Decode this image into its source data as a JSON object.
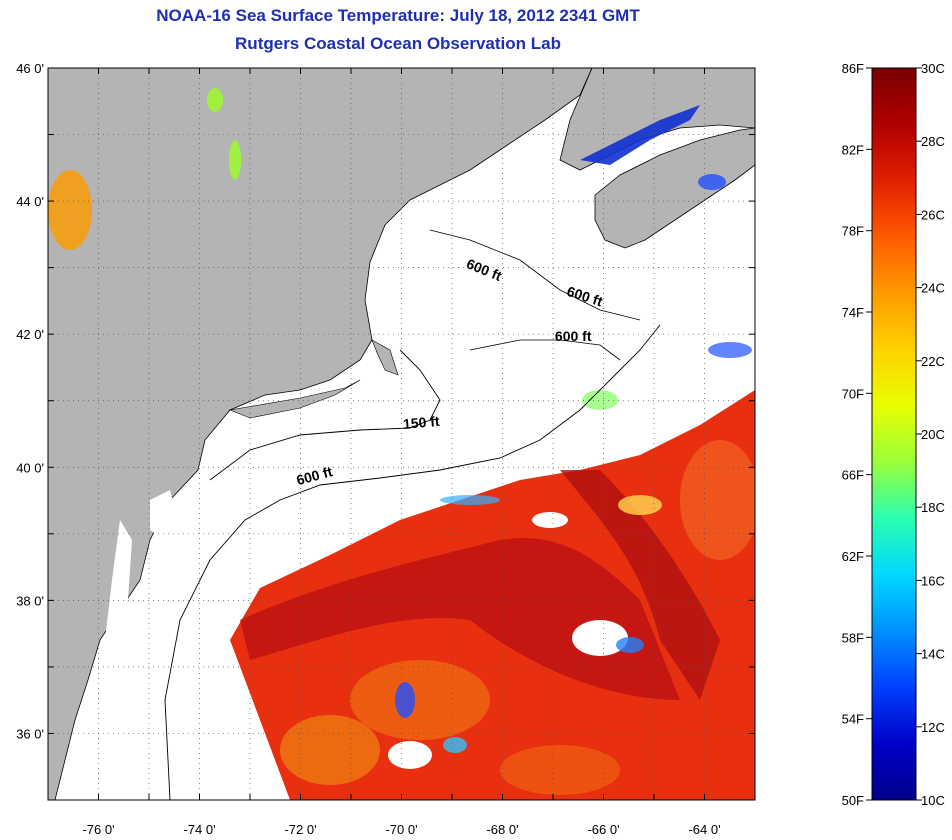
{
  "title": {
    "line1": "NOAA-16 Sea Surface Temperature:  July 18, 2012 2341 GMT",
    "line2": "Rutgers Coastal Ocean Observation Lab"
  },
  "axes": {
    "lon_range": [
      -77,
      -63
    ],
    "lat_range": [
      35,
      46
    ],
    "lon_ticks": [
      {
        "value": -76,
        "label": "-76 0'"
      },
      {
        "value": -74,
        "label": "-74 0'"
      },
      {
        "value": -72,
        "label": "-72 0'"
      },
      {
        "value": -70,
        "label": "-70 0'"
      },
      {
        "value": -68,
        "label": "-68 0'"
      },
      {
        "value": -66,
        "label": "-66 0'"
      },
      {
        "value": -64,
        "label": "-64 0'"
      }
    ],
    "lat_ticks": [
      {
        "value": 46,
        "label": "46 0'"
      },
      {
        "value": 44,
        "label": "44 0'"
      },
      {
        "value": 42,
        "label": "42 0'"
      },
      {
        "value": 40,
        "label": "40 0'"
      },
      {
        "value": 38,
        "label": "38 0'"
      },
      {
        "value": 36,
        "label": "36 0'"
      }
    ],
    "grid": "dotted"
  },
  "contour_labels": [
    {
      "text": "600 ft",
      "lon": -68.4,
      "lat": 42.9,
      "rotate": 22
    },
    {
      "text": "600 ft",
      "lon": -66.4,
      "lat": 42.5,
      "rotate": 18
    },
    {
      "text": "600 ft",
      "lon": -66.6,
      "lat": 41.9,
      "rotate": 0
    },
    {
      "text": "150 ft",
      "lon": -69.6,
      "lat": 40.6,
      "rotate": -5
    },
    {
      "text": "600 ft",
      "lon": -71.7,
      "lat": 39.8,
      "rotate": -15
    }
  ],
  "colorbar": {
    "fahrenheit": [
      "86F",
      "82F",
      "78F",
      "74F",
      "70F",
      "66F",
      "62F",
      "58F",
      "54F",
      "50F"
    ],
    "celsius": [
      "30C",
      "28C",
      "26C",
      "24C",
      "22C",
      "20C",
      "18C",
      "16C",
      "14C",
      "12C",
      "10C"
    ],
    "colors": [
      "#7a0000",
      "#b00000",
      "#e02000",
      "#ff5a00",
      "#ff9a00",
      "#ffd200",
      "#e8ff00",
      "#9aff3a",
      "#2affb0",
      "#00d8ff",
      "#0090ff",
      "#0040ff",
      "#0000c8",
      "#00008a"
    ]
  },
  "colors": {
    "land": "#b4b4b4",
    "cloud": "#ffffff",
    "title": "#1f2fb0",
    "sst_warm": "#e83010",
    "sst_hot": "#c01010"
  }
}
